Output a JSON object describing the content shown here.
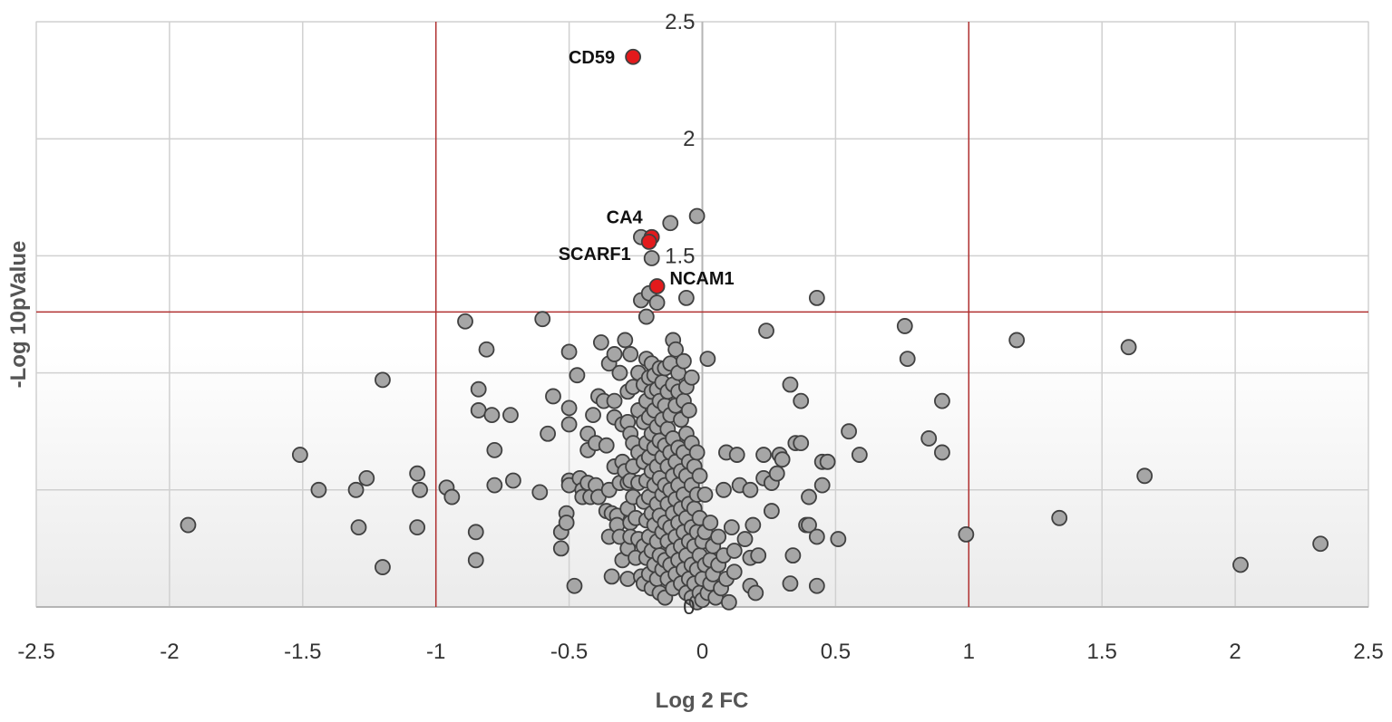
{
  "chart_data": {
    "type": "scatter",
    "title": "",
    "xlabel": "Log 2 FC",
    "ylabel": "-Log 10pValue",
    "xlim": [
      -2.5,
      2.5
    ],
    "ylim": [
      0,
      2.5
    ],
    "x_ticks": [
      -2.5,
      -2,
      -1.5,
      -1,
      -0.5,
      0,
      0.5,
      1,
      1.5,
      2,
      2.5
    ],
    "y_ticks": [
      0,
      0.5,
      1,
      1.5,
      2,
      2.5
    ],
    "x_tick_labels": [
      "-2.5",
      "-2",
      "-1.5",
      "-1",
      "-0.5",
      "0",
      "0.5",
      "1",
      "1.5",
      "2",
      "2.5"
    ],
    "y_tick_labels": [
      "0",
      "",
      "",
      "1.5",
      "2",
      "2.5"
    ],
    "grid": true,
    "thresholds": {
      "vertical": [
        -1,
        1
      ],
      "horizontal": 1.26
    },
    "colors": {
      "point": "#a6a6a6",
      "point_stroke": "#404040",
      "highlight": "#e31a1c",
      "threshold": "#b03030",
      "grid": "#d0d0d0"
    },
    "highlighted": [
      {
        "label": "CD59",
        "x": -0.26,
        "y": 2.35
      },
      {
        "label": "CA4",
        "x": -0.19,
        "y": 1.58
      },
      {
        "label": "SCARF1",
        "x": -0.2,
        "y": 1.56
      },
      {
        "label": "NCAM1",
        "x": -0.17,
        "y": 1.37
      }
    ],
    "points": [
      [
        -1.93,
        0.35
      ],
      [
        -1.51,
        0.65
      ],
      [
        -1.44,
        0.5
      ],
      [
        -1.3,
        0.5
      ],
      [
        -1.29,
        0.34
      ],
      [
        -1.26,
        0.55
      ],
      [
        -1.2,
        0.97
      ],
      [
        -1.2,
        0.17
      ],
      [
        -1.07,
        0.57
      ],
      [
        -1.06,
        0.5
      ],
      [
        -1.07,
        0.34
      ],
      [
        -0.96,
        0.51
      ],
      [
        -0.94,
        0.47
      ],
      [
        -0.89,
        1.22
      ],
      [
        -0.85,
        0.32
      ],
      [
        -0.85,
        0.2
      ],
      [
        -0.84,
        0.93
      ],
      [
        -0.84,
        0.84
      ],
      [
        -0.81,
        1.1
      ],
      [
        -0.79,
        0.82
      ],
      [
        -0.78,
        0.67
      ],
      [
        -0.78,
        0.52
      ],
      [
        -0.72,
        0.82
      ],
      [
        -0.71,
        0.54
      ],
      [
        -0.6,
        1.23
      ],
      [
        -0.61,
        0.49
      ],
      [
        -0.58,
        0.74
      ],
      [
        -0.56,
        0.9
      ],
      [
        -0.53,
        0.32
      ],
      [
        -0.53,
        0.25
      ],
      [
        -0.5,
        1.09
      ],
      [
        -0.5,
        0.78
      ],
      [
        -0.5,
        0.85
      ],
      [
        -0.5,
        0.54
      ],
      [
        -0.51,
        0.4
      ],
      [
        -0.51,
        0.36
      ],
      [
        -0.5,
        0.52
      ],
      [
        -0.48,
        0.09
      ],
      [
        -0.47,
        0.99
      ],
      [
        -0.46,
        0.55
      ],
      [
        -0.45,
        0.5
      ],
      [
        -0.45,
        0.47
      ],
      [
        -0.43,
        0.74
      ],
      [
        -0.43,
        0.67
      ],
      [
        -0.43,
        0.53
      ],
      [
        -0.42,
        0.47
      ],
      [
        -0.41,
        0.82
      ],
      [
        -0.4,
        0.7
      ],
      [
        -0.39,
        0.9
      ],
      [
        -0.4,
        0.52
      ],
      [
        -0.39,
        0.47
      ],
      [
        -0.38,
        1.13
      ],
      [
        -0.37,
        0.88
      ],
      [
        -0.36,
        0.69
      ],
      [
        -0.36,
        0.41
      ],
      [
        -0.35,
        1.04
      ],
      [
        -0.35,
        0.5
      ],
      [
        -0.34,
        0.4
      ],
      [
        -0.35,
        0.3
      ],
      [
        -0.34,
        0.13
      ],
      [
        -0.33,
        1.08
      ],
      [
        -0.33,
        0.88
      ],
      [
        -0.33,
        0.81
      ],
      [
        -0.33,
        0.6
      ],
      [
        -0.32,
        0.39
      ],
      [
        -0.32,
        0.35
      ],
      [
        -0.31,
        1.0
      ],
      [
        -0.31,
        0.53
      ],
      [
        -0.31,
        0.3
      ],
      [
        -0.3,
        0.78
      ],
      [
        -0.3,
        0.62
      ],
      [
        -0.29,
        0.58
      ],
      [
        -0.3,
        0.2
      ],
      [
        -0.29,
        1.14
      ],
      [
        -0.28,
        0.92
      ],
      [
        -0.28,
        0.79
      ],
      [
        -0.28,
        0.53
      ],
      [
        -0.28,
        0.42
      ],
      [
        -0.28,
        0.25
      ],
      [
        -0.28,
        0.12
      ],
      [
        -0.27,
        1.08
      ],
      [
        -0.27,
        0.74
      ],
      [
        -0.27,
        0.54
      ],
      [
        -0.27,
        0.36
      ],
      [
        -0.27,
        0.3
      ],
      [
        -0.26,
        0.94
      ],
      [
        -0.26,
        0.7
      ],
      [
        -0.26,
        0.6
      ],
      [
        -0.26,
        0.47
      ],
      [
        -0.25,
        0.21
      ],
      [
        -0.25,
        0.38
      ],
      [
        -0.24,
        1.0
      ],
      [
        -0.24,
        0.84
      ],
      [
        -0.24,
        0.66
      ],
      [
        -0.24,
        0.53
      ],
      [
        -0.24,
        0.29
      ],
      [
        -0.23,
        0.13
      ],
      [
        -0.23,
        1.58
      ],
      [
        -0.23,
        1.31
      ],
      [
        -0.22,
        0.95
      ],
      [
        -0.22,
        0.79
      ],
      [
        -0.22,
        0.62
      ],
      [
        -0.22,
        0.45
      ],
      [
        -0.22,
        0.26
      ],
      [
        -0.22,
        0.1
      ],
      [
        -0.21,
        1.24
      ],
      [
        -0.21,
        1.06
      ],
      [
        -0.21,
        0.88
      ],
      [
        -0.21,
        0.7
      ],
      [
        -0.21,
        0.54
      ],
      [
        -0.21,
        0.37
      ],
      [
        -0.21,
        0.21
      ],
      [
        -0.2,
        1.34
      ],
      [
        -0.2,
        0.98
      ],
      [
        -0.2,
        0.81
      ],
      [
        -0.2,
        0.64
      ],
      [
        -0.2,
        0.47
      ],
      [
        -0.2,
        0.3
      ],
      [
        -0.2,
        0.14
      ],
      [
        -0.19,
        1.49
      ],
      [
        -0.19,
        1.04
      ],
      [
        -0.19,
        0.92
      ],
      [
        -0.19,
        0.74
      ],
      [
        -0.19,
        0.58
      ],
      [
        -0.19,
        0.4
      ],
      [
        -0.19,
        0.24
      ],
      [
        -0.19,
        0.08
      ],
      [
        -0.17,
        1.3
      ],
      [
        -0.18,
        0.99
      ],
      [
        -0.18,
        0.84
      ],
      [
        -0.18,
        0.68
      ],
      [
        -0.18,
        0.52
      ],
      [
        -0.18,
        0.35
      ],
      [
        -0.18,
        0.18
      ],
      [
        -0.17,
        0.93
      ],
      [
        -0.17,
        0.77
      ],
      [
        -0.17,
        0.6
      ],
      [
        -0.17,
        0.44
      ],
      [
        -0.17,
        0.28
      ],
      [
        -0.17,
        0.12
      ],
      [
        -0.16,
        1.02
      ],
      [
        -0.16,
        0.88
      ],
      [
        -0.16,
        0.71
      ],
      [
        -0.16,
        0.55
      ],
      [
        -0.16,
        0.39
      ],
      [
        -0.16,
        0.22
      ],
      [
        -0.16,
        0.06
      ],
      [
        -0.15,
        0.96
      ],
      [
        -0.15,
        0.8
      ],
      [
        -0.15,
        0.64
      ],
      [
        -0.15,
        0.48
      ],
      [
        -0.15,
        0.32
      ],
      [
        -0.15,
        0.16
      ],
      [
        -0.14,
        1.02
      ],
      [
        -0.14,
        0.86
      ],
      [
        -0.14,
        0.69
      ],
      [
        -0.14,
        0.52
      ],
      [
        -0.14,
        0.36
      ],
      [
        -0.14,
        0.2
      ],
      [
        -0.14,
        0.04
      ],
      [
        -0.12,
        1.64
      ],
      [
        -0.13,
        0.92
      ],
      [
        -0.13,
        0.76
      ],
      [
        -0.13,
        0.6
      ],
      [
        -0.13,
        0.44
      ],
      [
        -0.13,
        0.28
      ],
      [
        -0.13,
        0.12
      ],
      [
        -0.12,
        1.04
      ],
      [
        -0.12,
        0.82
      ],
      [
        -0.12,
        0.66
      ],
      [
        -0.12,
        0.5
      ],
      [
        -0.12,
        0.34
      ],
      [
        -0.12,
        0.18
      ],
      [
        -0.11,
        1.14
      ],
      [
        -0.11,
        0.95
      ],
      [
        -0.11,
        0.72
      ],
      [
        -0.11,
        0.56
      ],
      [
        -0.11,
        0.4
      ],
      [
        -0.11,
        0.24
      ],
      [
        -0.11,
        0.08
      ],
      [
        -0.1,
        1.1
      ],
      [
        -0.1,
        0.86
      ],
      [
        -0.1,
        0.62
      ],
      [
        -0.1,
        0.46
      ],
      [
        -0.1,
        0.3
      ],
      [
        -0.1,
        0.14
      ],
      [
        -0.09,
        1.0
      ],
      [
        -0.09,
        0.92
      ],
      [
        -0.09,
        0.68
      ],
      [
        -0.09,
        0.52
      ],
      [
        -0.09,
        0.36
      ],
      [
        -0.09,
        0.2
      ],
      [
        -0.08,
        0.8
      ],
      [
        -0.08,
        0.58
      ],
      [
        -0.08,
        0.42
      ],
      [
        -0.08,
        0.26
      ],
      [
        -0.08,
        0.1
      ],
      [
        -0.07,
        1.05
      ],
      [
        -0.07,
        0.88
      ],
      [
        -0.07,
        0.66
      ],
      [
        -0.07,
        0.48
      ],
      [
        -0.07,
        0.32
      ],
      [
        -0.07,
        0.16
      ],
      [
        -0.06,
        1.32
      ],
      [
        -0.06,
        0.94
      ],
      [
        -0.06,
        0.74
      ],
      [
        -0.06,
        0.56
      ],
      [
        -0.06,
        0.38
      ],
      [
        -0.06,
        0.22
      ],
      [
        -0.06,
        0.06
      ],
      [
        -0.05,
        0.84
      ],
      [
        -0.05,
        0.62
      ],
      [
        -0.05,
        0.44
      ],
      [
        -0.05,
        0.28
      ],
      [
        -0.05,
        0.12
      ],
      [
        -0.04,
        0.98
      ],
      [
        -0.04,
        0.7
      ],
      [
        -0.04,
        0.52
      ],
      [
        -0.04,
        0.34
      ],
      [
        -0.04,
        0.18
      ],
      [
        -0.04,
        0.04
      ],
      [
        -0.03,
        0.6
      ],
      [
        -0.03,
        0.42
      ],
      [
        -0.03,
        0.26
      ],
      [
        -0.03,
        0.1
      ],
      [
        -0.02,
        1.67
      ],
      [
        -0.02,
        0.66
      ],
      [
        -0.02,
        0.48
      ],
      [
        -0.02,
        0.32
      ],
      [
        -0.02,
        0.16
      ],
      [
        -0.02,
        0.02
      ],
      [
        -0.01,
        0.56
      ],
      [
        -0.01,
        0.38
      ],
      [
        -0.01,
        0.22
      ],
      [
        -0.01,
        0.06
      ],
      [
        0.0,
        0.28
      ],
      [
        0.0,
        0.12
      ],
      [
        0.0,
        0.03
      ],
      [
        0.01,
        0.48
      ],
      [
        0.01,
        0.32
      ],
      [
        0.01,
        0.18
      ],
      [
        0.02,
        0.06
      ],
      [
        0.03,
        0.36
      ],
      [
        0.03,
        0.2
      ],
      [
        0.03,
        0.1
      ],
      [
        0.02,
        1.06
      ],
      [
        0.04,
        0.26
      ],
      [
        0.04,
        0.14
      ],
      [
        0.05,
        0.04
      ],
      [
        0.06,
        0.3
      ],
      [
        0.06,
        0.18
      ],
      [
        0.07,
        0.08
      ],
      [
        0.08,
        0.22
      ],
      [
        0.09,
        0.12
      ],
      [
        0.08,
        0.5
      ],
      [
        0.09,
        0.66
      ],
      [
        0.1,
        0.02
      ],
      [
        0.11,
        0.34
      ],
      [
        0.12,
        0.24
      ],
      [
        0.12,
        0.15
      ],
      [
        0.13,
        0.65
      ],
      [
        0.14,
        0.52
      ],
      [
        0.16,
        0.29
      ],
      [
        0.18,
        0.21
      ],
      [
        0.18,
        0.5
      ],
      [
        0.19,
        0.35
      ],
      [
        0.18,
        0.09
      ],
      [
        0.2,
        0.06
      ],
      [
        0.21,
        0.22
      ],
      [
        0.23,
        0.55
      ],
      [
        0.23,
        0.65
      ],
      [
        0.24,
        1.18
      ],
      [
        0.26,
        0.53
      ],
      [
        0.26,
        0.41
      ],
      [
        0.28,
        0.57
      ],
      [
        0.29,
        0.65
      ],
      [
        0.3,
        0.63
      ],
      [
        0.33,
        0.95
      ],
      [
        0.33,
        0.1
      ],
      [
        0.34,
        0.22
      ],
      [
        0.35,
        0.7
      ],
      [
        0.37,
        0.88
      ],
      [
        0.37,
        0.7
      ],
      [
        0.39,
        0.35
      ],
      [
        0.4,
        0.35
      ],
      [
        0.4,
        0.47
      ],
      [
        0.43,
        0.3
      ],
      [
        0.43,
        0.09
      ],
      [
        0.43,
        1.32
      ],
      [
        0.45,
        0.62
      ],
      [
        0.45,
        0.52
      ],
      [
        0.47,
        0.62
      ],
      [
        0.51,
        0.29
      ],
      [
        0.55,
        0.75
      ],
      [
        0.59,
        0.65
      ],
      [
        0.76,
        1.2
      ],
      [
        0.77,
        1.06
      ],
      [
        0.85,
        0.72
      ],
      [
        0.9,
        0.66
      ],
      [
        0.9,
        0.88
      ],
      [
        0.99,
        0.31
      ],
      [
        1.18,
        1.14
      ],
      [
        1.34,
        0.38
      ],
      [
        1.6,
        1.11
      ],
      [
        1.66,
        0.56
      ],
      [
        2.02,
        0.18
      ],
      [
        2.32,
        0.27
      ]
    ]
  }
}
